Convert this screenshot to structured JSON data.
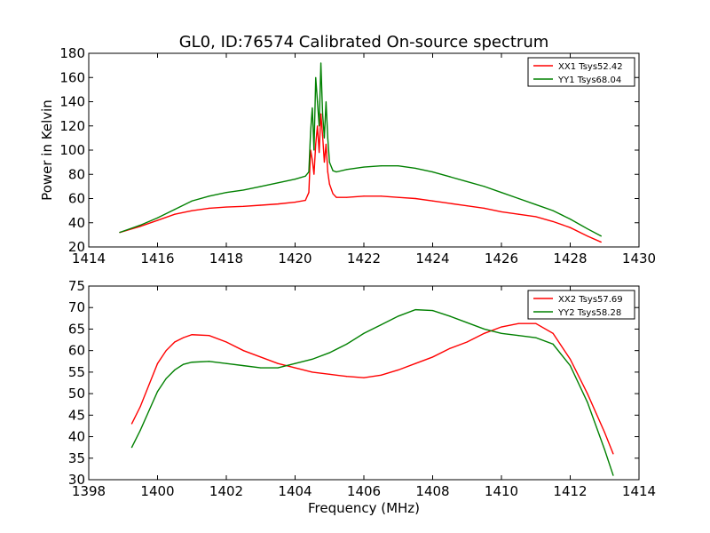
{
  "figure": {
    "title": "GL0, ID:76574 Calibrated On-source spectrum",
    "xlabel": "Frequency (MHz)"
  },
  "chart_data": [
    {
      "type": "line",
      "title": "GL0, ID:76574 Calibrated On-source spectrum",
      "xlabel": "",
      "ylabel": "Power in Kelvin",
      "xlim": [
        1414,
        1430
      ],
      "ylim": [
        20,
        180
      ],
      "xticks": [
        1414,
        1416,
        1418,
        1420,
        1422,
        1424,
        1426,
        1428,
        1430
      ],
      "yticks": [
        20,
        40,
        60,
        80,
        100,
        120,
        140,
        160,
        180
      ],
      "grid": false,
      "legend": "top-right",
      "series": [
        {
          "name": "XX1 Tsys52.42",
          "color": "#ff0000",
          "points": [
            [
              1414.9,
              32
            ],
            [
              1415.5,
              37
            ],
            [
              1416.0,
              42
            ],
            [
              1416.5,
              47
            ],
            [
              1417.0,
              50
            ],
            [
              1417.5,
              52
            ],
            [
              1418.0,
              53
            ],
            [
              1418.5,
              53.5
            ],
            [
              1419.0,
              54.5
            ],
            [
              1419.5,
              55.5
            ],
            [
              1420.0,
              57
            ],
            [
              1420.3,
              58.5
            ],
            [
              1420.4,
              65
            ],
            [
              1420.45,
              100
            ],
            [
              1420.5,
              92
            ],
            [
              1420.55,
              80
            ],
            [
              1420.6,
              105
            ],
            [
              1420.65,
              120
            ],
            [
              1420.7,
              98
            ],
            [
              1420.75,
              130
            ],
            [
              1420.8,
              112
            ],
            [
              1420.85,
              90
            ],
            [
              1420.9,
              105
            ],
            [
              1420.95,
              82
            ],
            [
              1421.0,
              72
            ],
            [
              1421.1,
              64
            ],
            [
              1421.2,
              61
            ],
            [
              1421.5,
              61
            ],
            [
              1422.0,
              62
            ],
            [
              1422.5,
              62
            ],
            [
              1423.0,
              61
            ],
            [
              1423.5,
              60
            ],
            [
              1424.0,
              58
            ],
            [
              1424.5,
              56
            ],
            [
              1425.0,
              54
            ],
            [
              1425.5,
              52
            ],
            [
              1426.0,
              49
            ],
            [
              1426.5,
              47
            ],
            [
              1427.0,
              45
            ],
            [
              1427.5,
              41
            ],
            [
              1428.0,
              36
            ],
            [
              1428.5,
              29
            ],
            [
              1428.9,
              24
            ]
          ]
        },
        {
          "name": "YY1 Tsys68.04",
          "color": "#008000",
          "points": [
            [
              1414.9,
              32
            ],
            [
              1415.5,
              38
            ],
            [
              1416.0,
              44
            ],
            [
              1416.5,
              51
            ],
            [
              1417.0,
              58
            ],
            [
              1417.5,
              62
            ],
            [
              1418.0,
              65
            ],
            [
              1418.5,
              67
            ],
            [
              1419.0,
              70
            ],
            [
              1419.5,
              73
            ],
            [
              1420.0,
              76
            ],
            [
              1420.3,
              78.5
            ],
            [
              1420.4,
              82
            ],
            [
              1420.45,
              115
            ],
            [
              1420.5,
              135
            ],
            [
              1420.55,
              100
            ],
            [
              1420.6,
              160
            ],
            [
              1420.65,
              140
            ],
            [
              1420.7,
              120
            ],
            [
              1420.75,
              172
            ],
            [
              1420.8,
              130
            ],
            [
              1420.85,
              110
            ],
            [
              1420.9,
              140
            ],
            [
              1420.95,
              110
            ],
            [
              1421.0,
              90
            ],
            [
              1421.1,
              83
            ],
            [
              1421.2,
              82
            ],
            [
              1421.5,
              84
            ],
            [
              1422.0,
              86
            ],
            [
              1422.5,
              87
            ],
            [
              1423.0,
              87
            ],
            [
              1423.5,
              85
            ],
            [
              1424.0,
              82
            ],
            [
              1424.5,
              78
            ],
            [
              1425.0,
              74
            ],
            [
              1425.5,
              70
            ],
            [
              1426.0,
              65
            ],
            [
              1426.5,
              60
            ],
            [
              1427.0,
              55
            ],
            [
              1427.5,
              50
            ],
            [
              1428.0,
              43
            ],
            [
              1428.5,
              35
            ],
            [
              1428.9,
              29
            ]
          ]
        }
      ]
    },
    {
      "type": "line",
      "title": "",
      "xlabel": "Frequency (MHz)",
      "ylabel": "",
      "xlim": [
        1398,
        1414
      ],
      "ylim": [
        30,
        75
      ],
      "xticks": [
        1398,
        1400,
        1402,
        1404,
        1406,
        1408,
        1410,
        1412,
        1414
      ],
      "yticks": [
        30,
        35,
        40,
        45,
        50,
        55,
        60,
        65,
        70,
        75
      ],
      "grid": false,
      "legend": "top-right",
      "series": [
        {
          "name": "XX2 Tsys57.69",
          "color": "#ff0000",
          "points": [
            [
              1399.25,
              43
            ],
            [
              1399.5,
              47
            ],
            [
              1399.75,
              52
            ],
            [
              1400.0,
              57
            ],
            [
              1400.25,
              60
            ],
            [
              1400.5,
              62
            ],
            [
              1400.75,
              63
            ],
            [
              1401.0,
              63.7
            ],
            [
              1401.5,
              63.5
            ],
            [
              1402.0,
              62
            ],
            [
              1402.5,
              60
            ],
            [
              1403.0,
              58.5
            ],
            [
              1403.5,
              57
            ],
            [
              1404.0,
              56
            ],
            [
              1404.5,
              55
            ],
            [
              1405.0,
              54.5
            ],
            [
              1405.5,
              54
            ],
            [
              1406.0,
              53.7
            ],
            [
              1406.5,
              54.3
            ],
            [
              1407.0,
              55.5
            ],
            [
              1407.5,
              57
            ],
            [
              1408.0,
              58.5
            ],
            [
              1408.5,
              60.5
            ],
            [
              1409.0,
              62
            ],
            [
              1409.5,
              64
            ],
            [
              1410.0,
              65.5
            ],
            [
              1410.5,
              66.3
            ],
            [
              1411.0,
              66.3
            ],
            [
              1411.5,
              64
            ],
            [
              1412.0,
              58
            ],
            [
              1412.5,
              50
            ],
            [
              1413.0,
              41
            ],
            [
              1413.25,
              36
            ]
          ]
        },
        {
          "name": "YY2 Tsys58.28",
          "color": "#008000",
          "points": [
            [
              1399.25,
              37.5
            ],
            [
              1399.5,
              41.5
            ],
            [
              1399.75,
              46
            ],
            [
              1400.0,
              50.5
            ],
            [
              1400.25,
              53.5
            ],
            [
              1400.5,
              55.5
            ],
            [
              1400.75,
              56.8
            ],
            [
              1401.0,
              57.3
            ],
            [
              1401.5,
              57.5
            ],
            [
              1402.0,
              57
            ],
            [
              1402.5,
              56.5
            ],
            [
              1403.0,
              56
            ],
            [
              1403.5,
              56
            ],
            [
              1404.0,
              57
            ],
            [
              1404.5,
              58
            ],
            [
              1405.0,
              59.5
            ],
            [
              1405.5,
              61.5
            ],
            [
              1406.0,
              64
            ],
            [
              1406.5,
              66
            ],
            [
              1407.0,
              68
            ],
            [
              1407.5,
              69.5
            ],
            [
              1408.0,
              69.3
            ],
            [
              1408.5,
              68
            ],
            [
              1409.0,
              66.5
            ],
            [
              1409.5,
              65
            ],
            [
              1410.0,
              64
            ],
            [
              1410.5,
              63.5
            ],
            [
              1411.0,
              63
            ],
            [
              1411.5,
              61.5
            ],
            [
              1412.0,
              56.5
            ],
            [
              1412.5,
              48
            ],
            [
              1413.0,
              37
            ],
            [
              1413.25,
              31
            ]
          ]
        }
      ]
    }
  ]
}
